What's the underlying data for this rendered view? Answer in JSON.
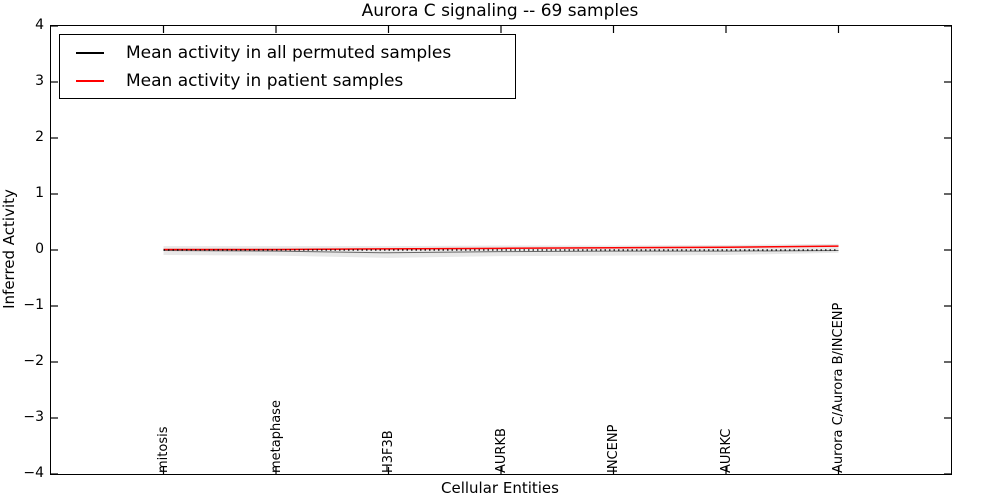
{
  "figure": {
    "title": "Aurora C signaling -- 69 samples",
    "background": "#ffffff"
  },
  "chart_data": {
    "type": "line",
    "title": "Aurora C signaling -- 69 samples",
    "xlabel": "Cellular Entities",
    "ylabel": "Inferred Activity",
    "ylim": [
      -4,
      4
    ],
    "xlim": [
      -1,
      7
    ],
    "grid": false,
    "ytick_values": [
      4,
      3,
      2,
      1,
      0,
      -1,
      -2,
      -3,
      -4
    ],
    "ytick_labels": [
      "4",
      "3",
      "2",
      "1",
      "0",
      "−1",
      "−2",
      "−3",
      "−4"
    ],
    "categories": [
      "mitosis",
      "metaphase",
      "H3F3B",
      "AURKB",
      "INCENP",
      "AURKC",
      "Aurora C/Aurora B/INCENP"
    ],
    "series": [
      {
        "name": "Mean activity in all permuted samples",
        "color": "#000000",
        "values": [
          -0.01,
          -0.02,
          -0.05,
          -0.03,
          -0.02,
          -0.02,
          -0.01
        ]
      },
      {
        "name": "Mean activity in patient samples",
        "color": "#ff0000",
        "values": [
          0.01,
          0.01,
          0.02,
          0.03,
          0.04,
          0.05,
          0.07
        ]
      }
    ],
    "band": {
      "color": "#e8e8e8",
      "upper": [
        0.07,
        0.07,
        0.07,
        0.08,
        0.08,
        0.09,
        0.11
      ],
      "lower": [
        -0.09,
        -0.1,
        -0.14,
        -0.11,
        -0.1,
        -0.09,
        -0.05
      ]
    },
    "zero_line": {
      "y": 0,
      "style": "dotted",
      "color": "#000000"
    },
    "legend": {
      "position": "upper left"
    }
  }
}
